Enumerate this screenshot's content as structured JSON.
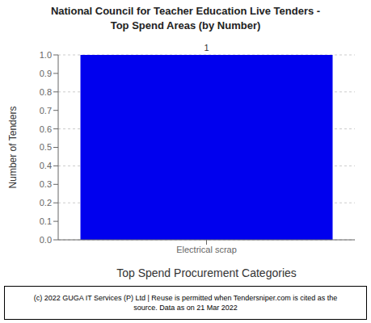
{
  "chart_data": {
    "type": "bar",
    "title": "National Council for Teacher Education Live Tenders -\nTop Spend Areas (by Number)",
    "categories": [
      "Electrical scrap"
    ],
    "values": [
      1
    ],
    "color": "#0000EE",
    "x_label": "Top Spend Procurement Categories",
    "y_label": "Number of Tenders",
    "ylim": [
      0,
      1
    ],
    "yticks": [
      {
        "value": 0,
        "label": "0.0"
      },
      0.1,
      0.2,
      0.3,
      0.4,
      0.5,
      0.6,
      0.7,
      0.8,
      0.9,
      {
        "value": 1,
        "label": "1.0"
      }
    ],
    "grid": true,
    "data_labels": true,
    "annotations": [
      "(c) 2022 GUGA IT Services (P) Ltd | Reuse is permitted when Tendersniper.com is cited as the\nsource. Data as on 21 Mar 2022"
    ]
  }
}
